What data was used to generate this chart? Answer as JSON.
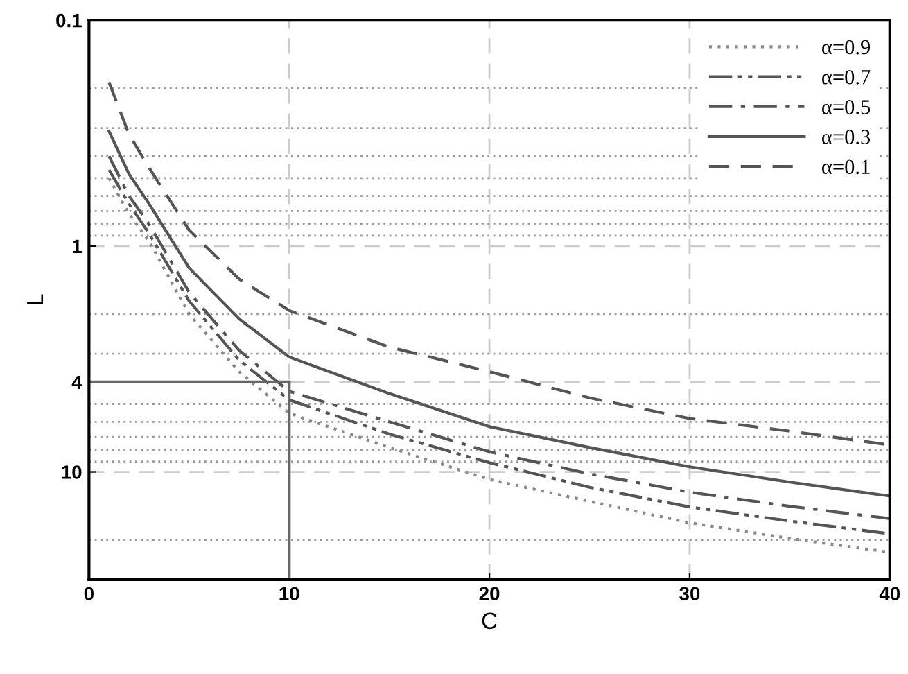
{
  "chart_data": {
    "type": "line",
    "xlabel": "C",
    "ylabel": "L",
    "log": "y",
    "xlim": [
      0,
      40
    ],
    "xticks": [
      0,
      10,
      20,
      30,
      40
    ],
    "ylim": [
      30,
      0.1
    ],
    "yticks": [
      0.1,
      1,
      4,
      10
    ],
    "grid": true,
    "legend": "top right",
    "x": [
      1,
      2,
      3,
      5,
      7.5,
      10,
      15,
      20,
      25,
      30,
      35,
      40
    ],
    "series": [
      {
        "name": "α=0.9",
        "color": "#8a8a8a",
        "line_style": "dotted",
        "values": [
          0.5,
          0.72,
          0.95,
          2.0,
          3.6,
          5.5,
          7.8,
          10.8,
          13.5,
          16.8,
          19.7,
          22.7
        ]
      },
      {
        "name": "α=0.7",
        "color": "#555555",
        "line_style": "dashdotdot",
        "values": [
          0.46,
          0.65,
          0.88,
          1.75,
          3.2,
          4.8,
          6.8,
          9.1,
          11.7,
          14.3,
          16.5,
          18.8
        ]
      },
      {
        "name": "α=0.5",
        "color": "#555555",
        "line_style": "dashdot",
        "values": [
          0.4,
          0.6,
          0.8,
          1.6,
          2.9,
          4.4,
          6.0,
          8.15,
          10.2,
          12.3,
          14.2,
          16.1
        ]
      },
      {
        "name": "α=0.3",
        "color": "#555555",
        "line_style": "solid",
        "values": [
          0.31,
          0.48,
          0.65,
          1.25,
          2.1,
          3.1,
          4.5,
          6.3,
          7.8,
          9.5,
          11.1,
          12.8
        ]
      },
      {
        "name": "α=0.1",
        "color": "#555555",
        "line_style": "dashed",
        "values": [
          0.188,
          0.32,
          0.45,
          0.85,
          1.4,
          1.93,
          2.8,
          3.6,
          4.7,
          5.8,
          6.6,
          7.6
        ]
      }
    ],
    "ref_lines": [
      {
        "axis": "y",
        "value": 4,
        "color": "#666666"
      },
      {
        "axis": "x",
        "value": 10,
        "color": "#666666"
      }
    ]
  }
}
